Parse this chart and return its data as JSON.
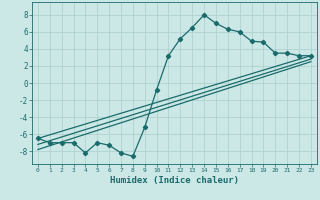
{
  "title": "",
  "xlabel": "Humidex (Indice chaleur)",
  "ylabel": "",
  "background_color": "#cce8e6",
  "grid_color": "#aacfcc",
  "line_color": "#1a6b6b",
  "xlim": [
    -0.5,
    23.5
  ],
  "ylim": [
    -9.5,
    9.5
  ],
  "yticks": [
    -8,
    -6,
    -4,
    -2,
    0,
    2,
    4,
    6,
    8
  ],
  "xticks": [
    0,
    1,
    2,
    3,
    4,
    5,
    6,
    7,
    8,
    9,
    10,
    11,
    12,
    13,
    14,
    15,
    16,
    17,
    18,
    19,
    20,
    21,
    22,
    23
  ],
  "line1_x": [
    0,
    1,
    2,
    3,
    4,
    5,
    6,
    7,
    8,
    9,
    10,
    11,
    12,
    13,
    14,
    15,
    16,
    17,
    18,
    19,
    20,
    21,
    22,
    23
  ],
  "line1_y": [
    -6.5,
    -7.0,
    -7.0,
    -7.0,
    -8.2,
    -7.0,
    -7.3,
    -8.2,
    -8.6,
    -5.2,
    -0.8,
    3.2,
    5.2,
    6.5,
    8.0,
    7.0,
    6.3,
    6.0,
    4.9,
    4.8,
    3.5,
    3.5,
    3.2,
    3.2
  ],
  "line2_x": [
    0,
    23
  ],
  "line2_y": [
    -6.5,
    3.2
  ],
  "line3_x": [
    0,
    23
  ],
  "line3_y": [
    -7.8,
    2.5
  ],
  "line4_x": [
    0,
    23
  ],
  "line4_y": [
    -7.2,
    2.8
  ],
  "marker": "D",
  "markersize": 2.2,
  "linewidth": 0.9
}
